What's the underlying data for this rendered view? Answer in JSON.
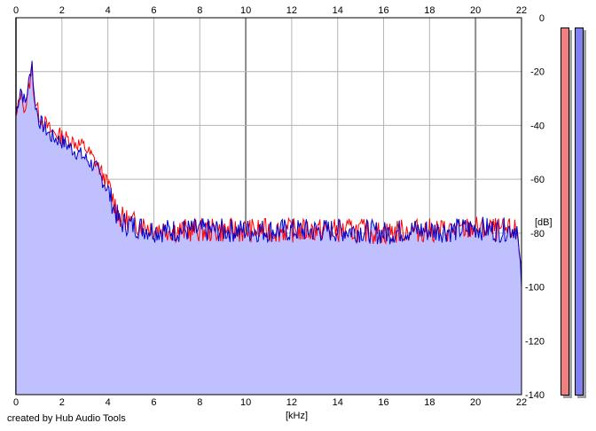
{
  "window": {
    "footer_text": "created by Hub Audio Tools"
  },
  "colors": {
    "background": "#ffffff",
    "fill": "#c0c0ff",
    "grid": "#b4b4b4",
    "grid_major": "#8c8c8c",
    "red_channel": "#ff0000",
    "blue_channel": "#0000cc",
    "meter_left": "#f08080",
    "meter_right": "#8080f0"
  },
  "meters": {
    "left": {
      "name": "left-level-meter",
      "color": "#f08080"
    },
    "right": {
      "name": "right-level-meter",
      "color": "#8080f0"
    }
  },
  "chart_data": {
    "type": "line",
    "title": "",
    "xlabel": "[kHz]",
    "ylabel": "[dB]",
    "xlim": [
      0,
      22
    ],
    "ylim": [
      -140,
      0
    ],
    "x_ticks": [
      "0",
      "2",
      "4",
      "6",
      "8",
      "10",
      "12",
      "14",
      "16",
      "18",
      "20",
      "22"
    ],
    "y_ticks": [
      "0",
      "-20",
      "-40",
      "-60",
      "-80",
      "-100",
      "-120",
      "-140"
    ],
    "grid": true,
    "legend": "none",
    "x": [
      0.0,
      0.2,
      0.4,
      0.6,
      0.7,
      0.8,
      1.0,
      1.5,
      2.0,
      2.5,
      3.0,
      3.5,
      4.0,
      4.5,
      5.0,
      5.5,
      6.0,
      7.0,
      8.0,
      9.0,
      10.0,
      11.0,
      12.0,
      13.0,
      14.0,
      15.0,
      16.0,
      17.0,
      18.0,
      19.0,
      20.0,
      21.0,
      21.8,
      22.0
    ],
    "series": [
      {
        "color": "#ff0000",
        "values": [
          -38,
          -28,
          -34,
          -24,
          -18,
          -30,
          -36,
          -42,
          -44,
          -46,
          -48,
          -54,
          -62,
          -74,
          -76,
          -77,
          -78,
          -79,
          -79,
          -79,
          -79,
          -79,
          -79,
          -79,
          -79,
          -79,
          -80,
          -79,
          -79,
          -79,
          -78,
          -79,
          -79,
          -92
        ]
      },
      {
        "color": "#0000cc",
        "values": [
          -36,
          -26,
          -32,
          -22,
          -16,
          -30,
          -38,
          -44,
          -46,
          -49,
          -52,
          -56,
          -64,
          -76,
          -77,
          -78,
          -79,
          -79,
          -79,
          -79,
          -79,
          -79,
          -79,
          -79,
          -79,
          -79,
          -80,
          -79,
          -79,
          -79,
          -78,
          -79,
          -78,
          -100
        ]
      }
    ]
  }
}
